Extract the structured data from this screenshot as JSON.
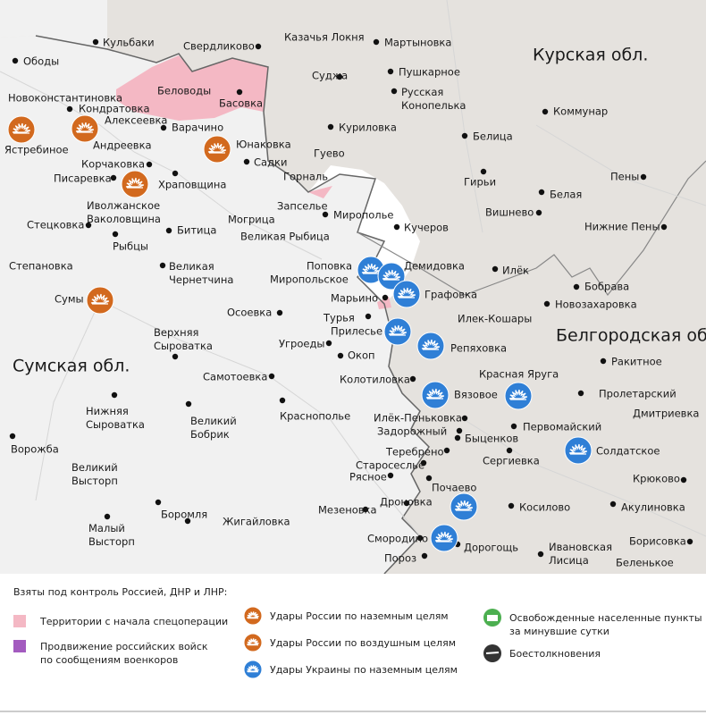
{
  "map": {
    "regions": [
      "Курская обл.",
      "Белгородская обл.",
      "Сумская обл."
    ],
    "places": [
      "Ободы",
      "Кульбаки",
      "Свердликово",
      "Казачья Локня",
      "Мартыновка",
      "Суджа",
      "Пушкарное",
      [
        "Русская",
        "Конопелька"
      ],
      "Беловоды",
      "Басовка",
      "Новоконстантиновка",
      "Кондратовка",
      "Алексеевка",
      "Варачино",
      "Коммунар",
      "Куриловка",
      "Ястребиное",
      "Андреевка",
      "Юнаковка",
      "Белица",
      "Гуево",
      "Корчаковка",
      "Садки",
      "Гирьи",
      "Пены",
      "Писаревка",
      "Храповщина",
      "Горналь",
      "Белая",
      [
        "Иволжанское",
        "Ваколовщина"
      ],
      "Запселье",
      "Мирополье",
      "Вишнево",
      "Стецковка",
      "Могрица",
      "Битица",
      "Кучеров",
      "Нижние Пены",
      "Великая Рыбица",
      "Рыбцы",
      "Степановка",
      [
        "Великая",
        "Чернетчина"
      ],
      "Поповка",
      "Демидовка",
      "Илёк",
      "Миропольское",
      "Бобрава",
      "Сумы",
      "Марьино",
      "Графовка",
      "Новозахаровка",
      "Осоевка",
      "Турья",
      "Илек-Кошары",
      "Прилесье",
      [
        "Верхняя",
        "Сыроватка"
      ],
      "Угроеды",
      "Репяховка",
      "Окоп",
      "Ракитное",
      "Красная Яруга",
      "Самотоевка",
      "Колотиловка",
      "Пролетарский",
      "Вязовое",
      [
        "Нижняя",
        "Сыроватка"
      ],
      [
        "Великий",
        "Бобрик"
      ],
      "Краснополье",
      "Илёк-Пеньковка",
      "Дмитриевка",
      "Первомайский",
      "Задорожный",
      "Быценков",
      "Ворожба",
      "Солдатское",
      "Теребрено",
      "Сергиевка",
      [
        "Великий",
        "Высторп"
      ],
      "Старосеслье",
      "Рясное",
      "Почаево",
      "Крюково",
      "Дроновка",
      "Косилово",
      "Акулиновка",
      "Боромля",
      "Жигайловка",
      "Мезеновка",
      [
        "Малый",
        "Высторп"
      ],
      "Смородино",
      "Дорогощь",
      [
        "Ивановская",
        "Лисица"
      ],
      "Борисовка",
      "Пороз",
      "Беленькое"
    ]
  },
  "legend": {
    "title": "Взяты под контроль Россией, ДНР и ЛНР:",
    "items": [
      "Территории с начала спецоперации",
      [
        "Продвижение российских войск",
        "по сообщениям военкоров"
      ],
      "Удары России по наземным целям",
      "Удары России по воздушным целям",
      "Удары Украины по наземным целям",
      [
        "Освобожденные населенные пункты",
        "за минувшие сутки"
      ],
      "Боестолкновения"
    ]
  }
}
